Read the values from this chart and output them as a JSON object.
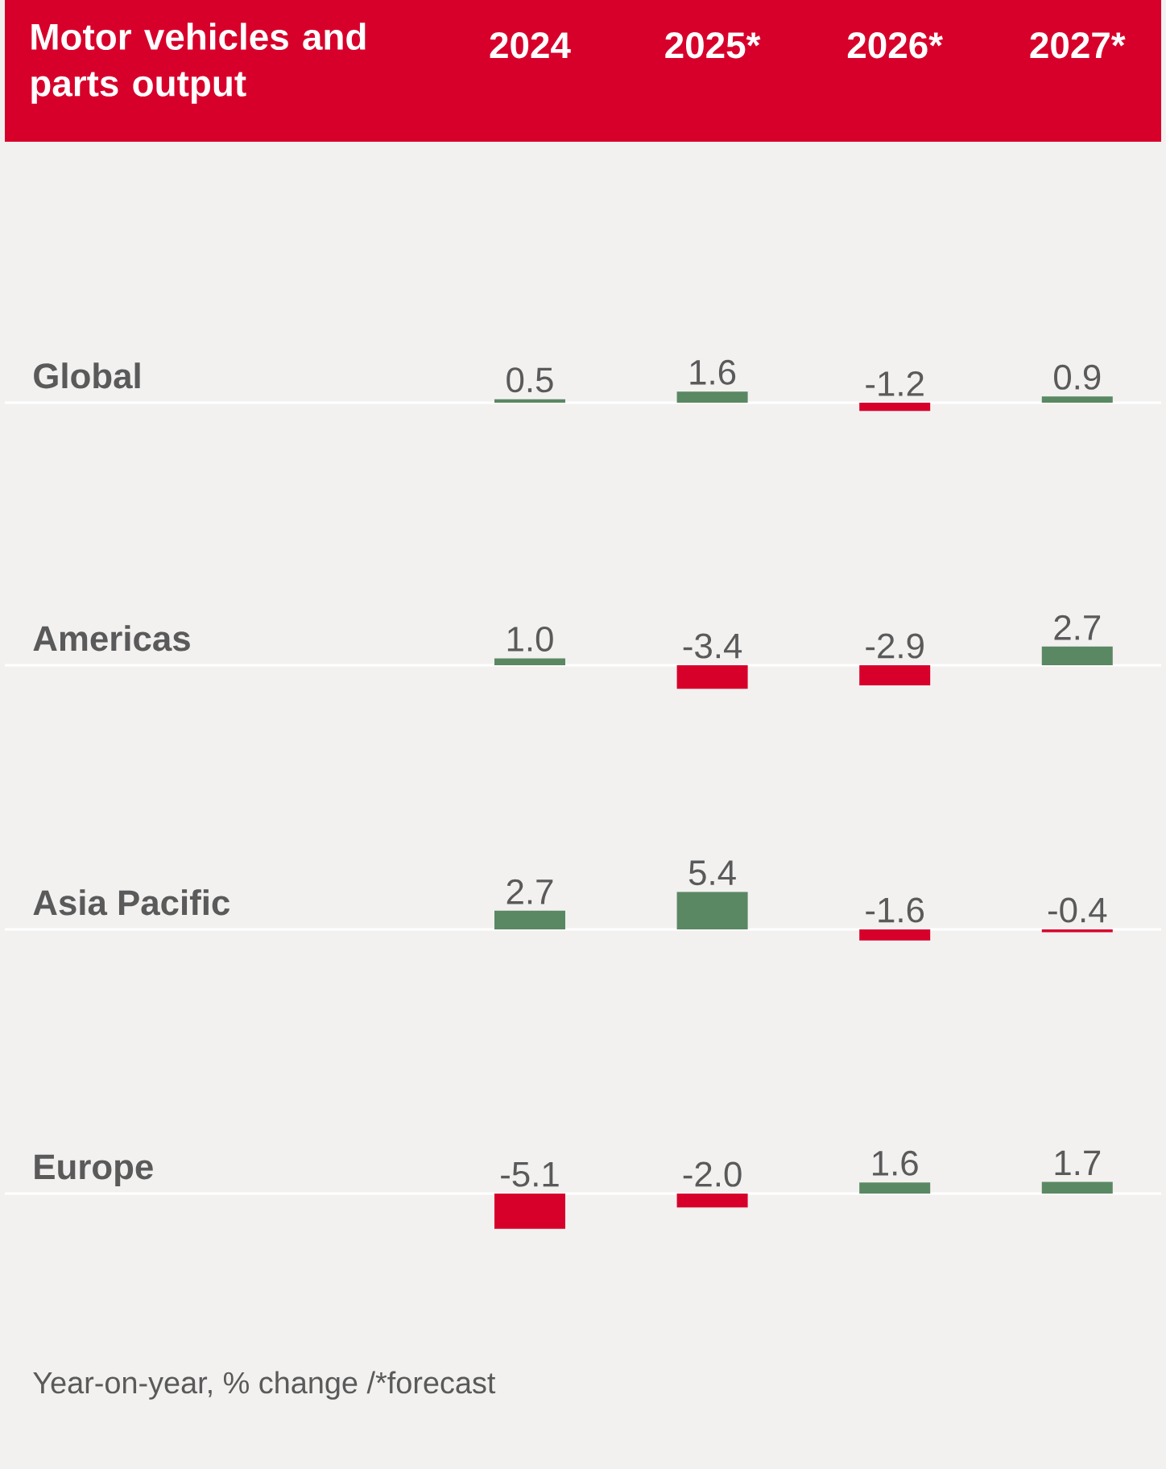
{
  "chart_data": [
    {
      "type": "bar",
      "title": "Motor vehicles and parts output",
      "ylabel": "Global",
      "categories": [
        "2024",
        "2025*",
        "2026*",
        "2027*"
      ],
      "values": [
        0.5,
        1.6,
        -1.2,
        0.9
      ],
      "value_labels": [
        "0.5",
        "1.6",
        "-1.2",
        "0.9"
      ],
      "colors": [
        "#5a8863",
        "#5a8863",
        "#d7002b",
        "#5a8863"
      ]
    },
    {
      "type": "bar",
      "ylabel": "Americas",
      "categories": [
        null,
        null,
        null,
        null
      ],
      "values": [
        1.0,
        -3.4,
        -2.9,
        2.7
      ],
      "value_labels": [
        "1.0",
        "-3.4",
        "-2.9",
        "2.7"
      ],
      "colors": [
        "#5a8863",
        "#d7002b",
        "#d7002b",
        "#5a8863"
      ]
    },
    {
      "type": "bar",
      "ylabel": "Asia Pacific",
      "categories": [
        null,
        null,
        null,
        null
      ],
      "values": [
        2.7,
        5.4,
        -1.6,
        -0.4
      ],
      "value_labels": [
        "2.7",
        "5.4",
        "-1.6",
        "-0.4"
      ],
      "colors": [
        "#5a8863",
        "#5a8863",
        "#d7002b",
        "#d7002b"
      ]
    },
    {
      "type": "bar",
      "ylabel": "Europe",
      "categories": [
        null,
        null,
        null,
        null
      ],
      "values": [
        -5.1,
        -2.0,
        1.6,
        1.7
      ],
      "value_labels": [
        "-5.1",
        "-2.0",
        "1.6",
        "1.7"
      ],
      "colors": [
        "#d7002b",
        "#d7002b",
        "#5a8863",
        "#5a8863"
      ],
      "annotations": [
        "Year-on-year, % change /*forecast"
      ]
    }
  ]
}
